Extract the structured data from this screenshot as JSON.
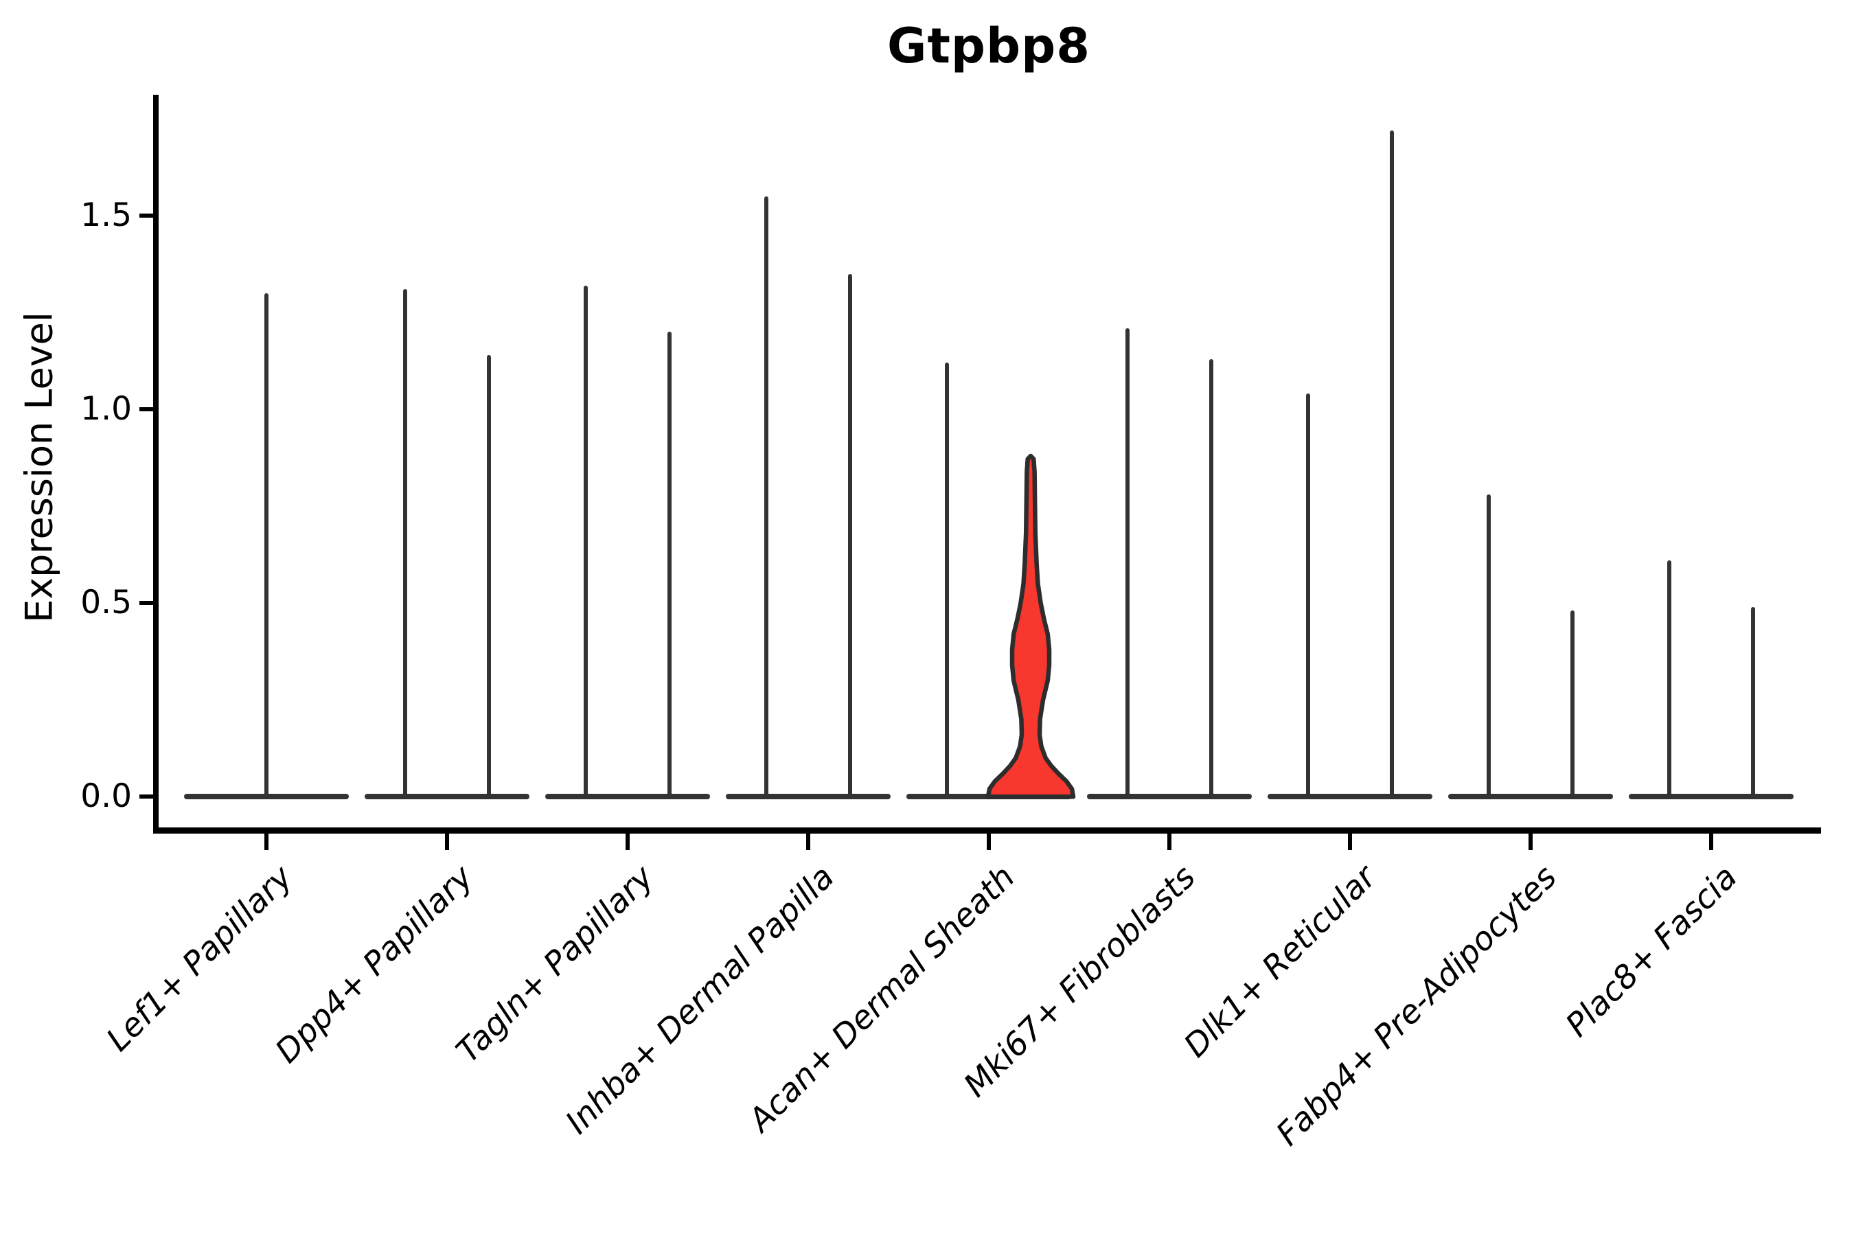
{
  "chart_data": {
    "type": "violin",
    "title": "Gtpbp8",
    "ylabel": "Expression Level",
    "xlabel": "",
    "ylim": [
      -0.09,
      1.81
    ],
    "yticks": [
      {
        "label": "0.0",
        "value": 0.0
      },
      {
        "label": "0.5",
        "value": 0.5
      },
      {
        "label": "1.0",
        "value": 1.0
      },
      {
        "label": "1.5",
        "value": 1.5
      }
    ],
    "grid": false,
    "legend": "none",
    "note": "Split violin plot: 2 violins per category (except first); nearly all mass at 0 so violins render as flat baselines with a thin spike up to the max expression value. One violin (Acan+ Dermal Sheath, right) is highlighted red with visible density bulge.",
    "categories": [
      {
        "label": "Lef1+ Papillary",
        "violins": [
          {
            "max": 1.3
          }
        ]
      },
      {
        "label": "Dpp4+ Papillary",
        "violins": [
          {
            "max": 1.31
          },
          {
            "max": 1.14
          }
        ]
      },
      {
        "label": "Tagln+ Papillary",
        "violins": [
          {
            "max": 1.32
          },
          {
            "max": 1.2
          }
        ]
      },
      {
        "label": "Inhba+ Dermal Papilla",
        "violins": [
          {
            "max": 1.55
          },
          {
            "max": 1.35
          }
        ]
      },
      {
        "label": "Acan+ Dermal Sheath",
        "violins": [
          {
            "max": 1.12
          },
          {
            "max": 0.88,
            "highlighted": true
          }
        ]
      },
      {
        "label": "Mki67+ Fibroblasts",
        "violins": [
          {
            "max": 1.21
          },
          {
            "max": 1.13
          }
        ]
      },
      {
        "label": "Dlk1+ Reticular",
        "violins": [
          {
            "max": 1.04
          },
          {
            "max": 1.72
          }
        ]
      },
      {
        "label": "Fabp4+ Pre-Adipocytes",
        "violins": [
          {
            "max": 0.78
          },
          {
            "max": 0.48
          }
        ]
      },
      {
        "label": "Plac8+ Fascia",
        "violins": [
          {
            "max": 0.61
          },
          {
            "max": 0.49
          }
        ]
      }
    ],
    "highlight_profile": [
      [
        0.0,
        1.0
      ],
      [
        0.02,
        0.97
      ],
      [
        0.04,
        0.84
      ],
      [
        0.06,
        0.65
      ],
      [
        0.08,
        0.48
      ],
      [
        0.1,
        0.35
      ],
      [
        0.13,
        0.25
      ],
      [
        0.16,
        0.21
      ],
      [
        0.2,
        0.22
      ],
      [
        0.25,
        0.29
      ],
      [
        0.3,
        0.4
      ],
      [
        0.34,
        0.435
      ],
      [
        0.38,
        0.435
      ],
      [
        0.42,
        0.4
      ],
      [
        0.46,
        0.31
      ],
      [
        0.5,
        0.235
      ],
      [
        0.55,
        0.17
      ],
      [
        0.6,
        0.14
      ],
      [
        0.68,
        0.11
      ],
      [
        0.76,
        0.1
      ],
      [
        0.84,
        0.09
      ],
      [
        0.872,
        0.07
      ],
      [
        0.88,
        0.0
      ]
    ]
  },
  "colors": {
    "background": "#ffffff",
    "axis": "#000000",
    "text": "#000000",
    "violin_outline": "#333333",
    "highlight_fill": "#f8372e",
    "highlight_stroke": "#2d2d2d"
  }
}
